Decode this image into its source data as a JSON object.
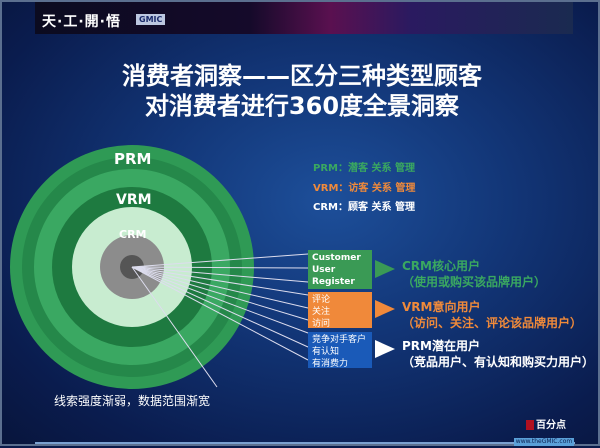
{
  "header": {
    "brand": "天·工·開·悟",
    "badge": "GMIC"
  },
  "title": {
    "line1": "消费者洞察——区分三种类型顾客",
    "line2": "对消费者进行360度全景洞察"
  },
  "rings": {
    "outer": "PRM",
    "middle": "VRM",
    "inner": "CRM"
  },
  "legend": [
    {
      "text": "PRM：潜客 关系 管理",
      "color": "#3aa860"
    },
    {
      "text": "VRM：访客 关系 管理",
      "color": "#f08a3a"
    },
    {
      "text": "CRM：顾客 关系 管理",
      "color": "#ffffff"
    }
  ],
  "groups": [
    {
      "box": [
        "Customer",
        "User",
        "Register"
      ],
      "box_color": "#3a9a55",
      "title": "CRM核心用户",
      "desc": "（使用或购买该品牌用户）",
      "text_color": "#3aa860"
    },
    {
      "box": [
        "评论",
        "关注",
        "访问"
      ],
      "box_color": "#f0893a",
      "title": "VRM意向用户",
      "desc": "（访问、关注、评论该品牌用户）",
      "text_color": "#f08a3a"
    },
    {
      "box": [
        "竞争对手客户",
        "有认知",
        "有消费力"
      ],
      "box_color": "#1a5ab8",
      "title": "PRM潜在用户",
      "desc": "（竞品用户、有认知和购买力用户）",
      "text_color": "#ffffff"
    }
  ],
  "caption": "线索强度渐弱，数据范围渐宽",
  "footer": {
    "logo": "百分点",
    "url": "www.theGMIC.com"
  }
}
